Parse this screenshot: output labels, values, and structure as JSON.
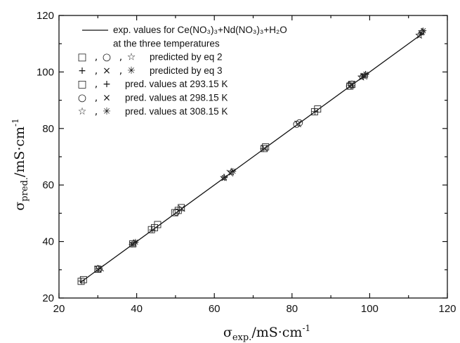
{
  "chart_data": {
    "type": "scatter",
    "xlabel": "σ",
    "xlabel_sub": "exp.",
    "xlabel_unit": "/mS·cm",
    "xlabel_sup": "-1",
    "ylabel": "σ",
    "ylabel_sub": "pred.",
    "ylabel_unit": "/mS·cm",
    "ylabel_sup": "-1",
    "xlim": [
      20,
      120
    ],
    "ylim": [
      20,
      120
    ],
    "x_ticks": [
      "20",
      "40",
      "60",
      "80",
      "100",
      "120"
    ],
    "y_ticks": [
      "20",
      "40",
      "60",
      "80",
      "100",
      "120"
    ],
    "legend_position": "top-left",
    "legend": [
      {
        "symbols": [
          "line"
        ],
        "text": "exp. values for Ce(NO₃)₃+Nd(NO₃)₃+H₂O"
      },
      {
        "symbols": [],
        "text": "at the three temperatures"
      },
      {
        "symbols": [
          "□",
          ",",
          "○",
          ",",
          "☆"
        ],
        "text": "predicted by eq 2"
      },
      {
        "symbols": [
          "+",
          ",",
          "×",
          ",",
          "✳"
        ],
        "text": "predicted by eq 3"
      },
      {
        "symbols": [
          "□",
          ",",
          "+"
        ],
        "text": "pred. values at 293.15 K"
      },
      {
        "symbols": [
          "○",
          ",",
          "×"
        ],
        "text": "pred. values at 298.15 K"
      },
      {
        "symbols": [
          "☆",
          ",",
          "✳"
        ],
        "text": "pred. values at 308.15 K"
      }
    ],
    "line": {
      "name": "exp. values",
      "x": [
        25.5,
        113.5
      ],
      "y": [
        25.5,
        113.5
      ]
    },
    "series": [
      {
        "name": "293.15 K eq 2",
        "marker": "square",
        "x": [
          25.7,
          26.3,
          30.0,
          39.0,
          43.8,
          44.6,
          45.4,
          49.8,
          50.7,
          51.5,
          72.8,
          73.2,
          85.8,
          86.6,
          94.9,
          95.4
        ],
        "y": [
          25.9,
          26.5,
          30.2,
          39.2,
          44.2,
          44.9,
          46.0,
          50.2,
          51.0,
          52.0,
          72.9,
          73.5,
          85.9,
          86.9,
          95.0,
          95.6
        ]
      },
      {
        "name": "293.15 K eq 3",
        "marker": "plus",
        "x": [
          25.8,
          30.2,
          44.0,
          51.0,
          72.6,
          85.9,
          95.1
        ],
        "y": [
          26.0,
          30.3,
          44.1,
          51.2,
          72.8,
          86.0,
          95.3
        ]
      },
      {
        "name": "298.15 K eq 2",
        "marker": "circle",
        "x": [
          30.3,
          50.2,
          81.2,
          81.9,
          94.8,
          95.4
        ],
        "y": [
          30.3,
          50.4,
          81.5,
          82.0,
          95.0,
          95.7
        ]
      },
      {
        "name": "298.15 K eq 3",
        "marker": "cross",
        "x": [
          30.1,
          30.7,
          51.6,
          64.0,
          72.9,
          81.5,
          95.2,
          98.5
        ],
        "y": [
          30.2,
          30.6,
          51.7,
          64.2,
          73.0,
          81.6,
          95.4,
          98.5
        ]
      },
      {
        "name": "308.15 K eq 2",
        "marker": "star",
        "x": [
          39.3,
          62.5,
          64.4,
          97.9,
          98.9,
          112.8,
          113.5
        ],
        "y": [
          39.3,
          62.6,
          64.6,
          98.2,
          98.9,
          113.0,
          114.2
        ]
      },
      {
        "name": "308.15 K eq 3",
        "marker": "asterisk",
        "x": [
          38.8,
          39.7,
          62.6,
          64.8,
          98.2,
          99.0,
          113.2,
          113.8
        ],
        "y": [
          39.0,
          39.8,
          62.6,
          64.9,
          98.5,
          99.2,
          113.8,
          114.6
        ]
      }
    ]
  }
}
